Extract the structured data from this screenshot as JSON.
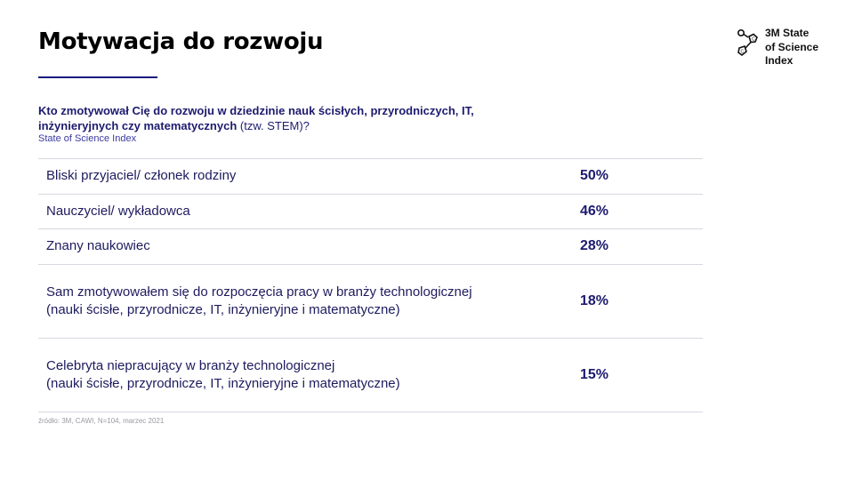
{
  "title": "Motywacja do rozwoju",
  "logo": {
    "text": "3M State\nof Science\nIndex",
    "icon": "molecule-icon"
  },
  "question": {
    "bold": "Kto zmotywował Cię do rozwoju w dziedzinie nauk ścisłych, przyrodniczych, IT, inżynieryjnych czy matematycznych",
    "note": "(tzw. STEM)?",
    "source": "State of Science Index"
  },
  "rows": [
    {
      "label": "Bliski przyjaciel/ członek rodziny",
      "sub": "",
      "value": "50%"
    },
    {
      "label": "Nauczyciel/ wykładowca",
      "sub": "",
      "value": "46%"
    },
    {
      "label": "Znany naukowiec",
      "sub": "",
      "value": "28%"
    },
    {
      "label": "Sam zmotywowałem się do rozpoczęcia pracy w branży technologicznej",
      "sub": "(nauki ścisłe, przyrodnicze, IT, inżynieryjne i matematyczne)",
      "value": "18%"
    },
    {
      "label": "Celebryta niepracujący w branży technologicznej",
      "sub": "(nauki ścisłe, przyrodnicze, IT, inżynieryjne i matematyczne)",
      "value": "15%"
    }
  ],
  "footnote": "źródło: 3M, CAWI, N=104, marzec 2021",
  "colors": {
    "accent": "#1d1b6e",
    "rule": "#1a1a7e",
    "divider": "#d8d8e0"
  }
}
